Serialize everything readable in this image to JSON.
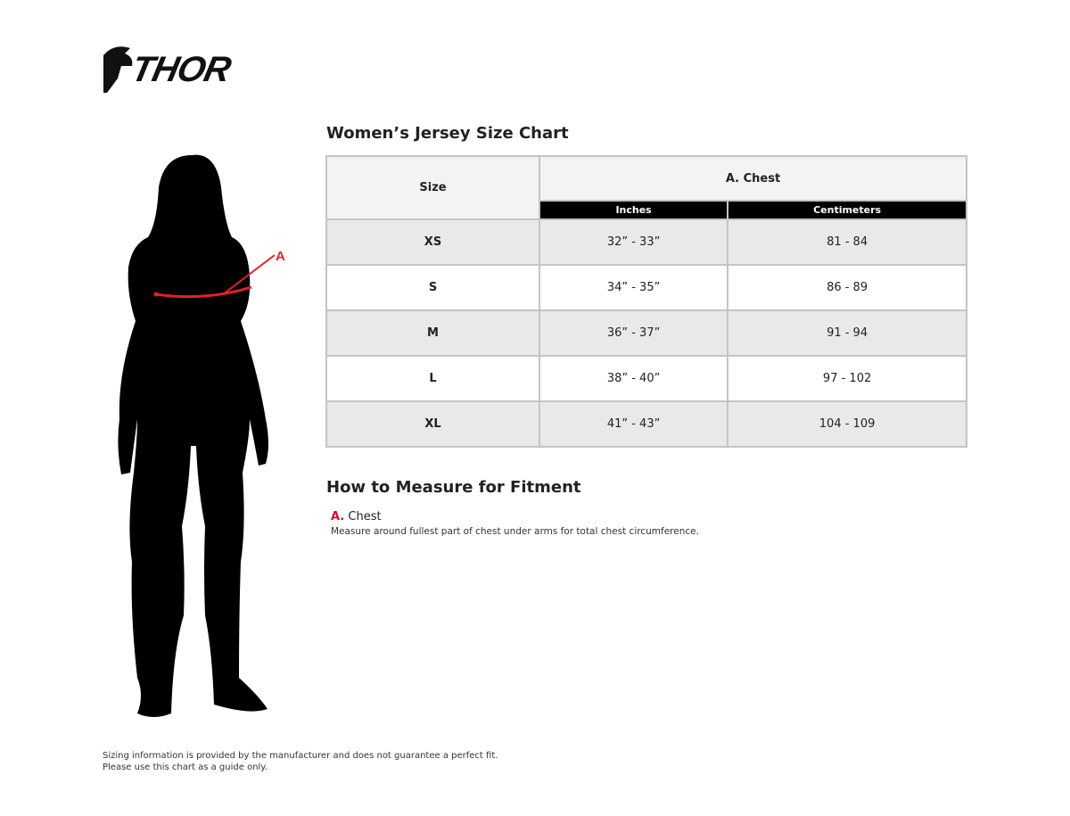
{
  "brand": {
    "logo_text": "THOR"
  },
  "chart": {
    "title": "Women’s Jersey Size Chart",
    "size_header": "Size",
    "measure_header": "A. Chest",
    "sub_headers": [
      "Inches",
      "Centimeters"
    ],
    "rows": [
      {
        "size": "XS",
        "inches": "32” - 33”",
        "cm": "81 - 84"
      },
      {
        "size": "S",
        "inches": "34” - 35”",
        "cm": "86 - 89"
      },
      {
        "size": "M",
        "inches": "36” - 37”",
        "cm": "91 - 94"
      },
      {
        "size": "L",
        "inches": "38” - 40”",
        "cm": "97 - 102"
      },
      {
        "size": "XL",
        "inches": "41” - 43”",
        "cm": "104 - 109"
      }
    ]
  },
  "figure": {
    "marker": "A",
    "accent": "#e4202a"
  },
  "how_to": {
    "title": "How to Measure for Fitment",
    "letter": "A.",
    "label": "Chest",
    "description": "Measure around fullest part of chest under arms for total chest circumference."
  },
  "disclaimer": {
    "line1": "Sizing information is provided by the manufacturer and does not guarantee a perfect fit.",
    "line2": "Please use this chart as a guide only."
  }
}
